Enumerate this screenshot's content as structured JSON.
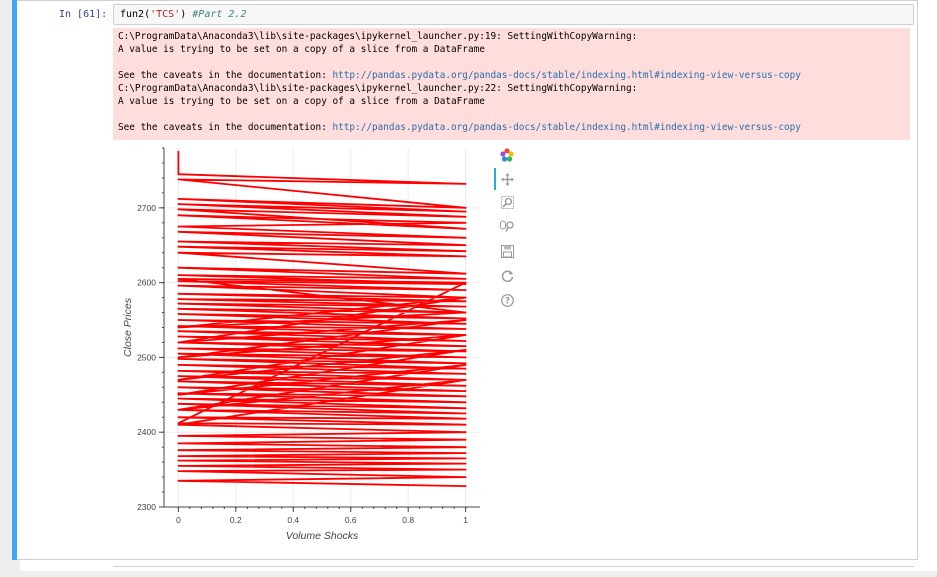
{
  "cell": {
    "prompt": "In [61]:",
    "code_fn": "fun2(",
    "code_arg": "'TCS'",
    "code_close": ")",
    "code_comment": "#Part 2.2"
  },
  "stderr": {
    "line1": "C:\\ProgramData\\Anaconda3\\lib\\site-packages\\ipykernel_launcher.py:19: SettingWithCopyWarning:",
    "line2": "A value is trying to be set on a copy of a slice from a DataFrame",
    "line3_prefix": "See the caveats in the documentation: ",
    "line3_link": "http://pandas.pydata.org/pandas-docs/stable/indexing.html#indexing-view-versus-copy",
    "line4": "C:\\ProgramData\\Anaconda3\\lib\\site-packages\\ipykernel_launcher.py:22: SettingWithCopyWarning:",
    "line5": "A value is trying to be set on a copy of a slice from a DataFrame",
    "line6_prefix": "See the caveats in the documentation: ",
    "line6_link": "http://pandas.pydata.org/pandas-docs/stable/indexing.html#indexing-view-versus-copy"
  },
  "toolbar": {
    "logo_icon": "bokeh-logo-icon",
    "tools": [
      "pan-icon",
      "box-zoom-icon",
      "wheel-zoom-icon",
      "save-icon",
      "reset-icon",
      "help-icon"
    ]
  },
  "chart_data": {
    "type": "line",
    "xlabel": "Volume Shocks",
    "ylabel": "Close Prices",
    "xlim": [
      -0.05,
      1.05
    ],
    "ylim": [
      2300,
      2780
    ],
    "x_ticks": [
      "0",
      "0.2",
      "0.4",
      "0.6",
      "0.8",
      "1"
    ],
    "y_ticks": [
      "2300",
      "2400",
      "2500",
      "2600",
      "2700"
    ],
    "color": "#ff0000",
    "series": [
      {
        "x": [
          0,
          0,
          1,
          0,
          1,
          0,
          1,
          0,
          1,
          0,
          1,
          0,
          1,
          0,
          1,
          0,
          1,
          0,
          1,
          0,
          1,
          0,
          1,
          0,
          1,
          0,
          1,
          0,
          1,
          0,
          1,
          0,
          1,
          0,
          1,
          0,
          1,
          0,
          1,
          0,
          1,
          0,
          1,
          0,
          1,
          0,
          1,
          0,
          1,
          0,
          1,
          0,
          1,
          0,
          1,
          0,
          1,
          0,
          1,
          0,
          1,
          0,
          1,
          0,
          1,
          0,
          1,
          0,
          1,
          0,
          1,
          0,
          1,
          0,
          1,
          0,
          1,
          0,
          1,
          0,
          1,
          0,
          1,
          0,
          1,
          0,
          1,
          0,
          1,
          0,
          1,
          0,
          1,
          0,
          1,
          0,
          1,
          0,
          1,
          0,
          1,
          0,
          1,
          0,
          1,
          0,
          1,
          0,
          1,
          0,
          1
        ],
        "y": [
          2775,
          2745,
          2732,
          2738,
          2700,
          2712,
          2695,
          2705,
          2688,
          2698,
          2672,
          2690,
          2680,
          2675,
          2660,
          2668,
          2650,
          2655,
          2642,
          2648,
          2635,
          2640,
          2612,
          2620,
          2605,
          2610,
          2598,
          2602,
          2590,
          2596,
          2580,
          2585,
          2575,
          2578,
          2568,
          2572,
          2560,
          2565,
          2552,
          2558,
          2545,
          2550,
          2538,
          2542,
          2530,
          2535,
          2522,
          2528,
          2515,
          2520,
          2508,
          2512,
          2500,
          2505,
          2492,
          2498,
          2485,
          2490,
          2478,
          2482,
          2470,
          2475,
          2462,
          2468,
          2455,
          2460,
          2448,
          2452,
          2440,
          2445,
          2432,
          2438,
          2425,
          2430,
          2418,
          2420,
          2410,
          2412,
          2600,
          2605,
          2560,
          2540,
          2580,
          2520,
          2550,
          2500,
          2530,
          2470,
          2510,
          2450,
          2490,
          2430,
          2470,
          2410,
          2400,
          2395,
          2390,
          2385,
          2380,
          2376,
          2372,
          2368,
          2365,
          2362,
          2358,
          2355,
          2350,
          2348,
          2340,
          2335,
          2328
        ]
      }
    ]
  }
}
